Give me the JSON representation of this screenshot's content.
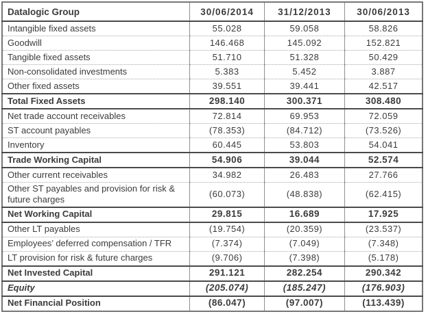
{
  "table": {
    "title": "Datalogic Group",
    "columns": [
      "30/06/2014",
      "31/12/2013",
      "30/06/2013"
    ],
    "rows": [
      {
        "label": "Intangible fixed assets",
        "values": [
          "55.028",
          "59.058",
          "58.826"
        ],
        "style": "normal",
        "divider": "solid"
      },
      {
        "label": "Goodwill",
        "values": [
          "146.468",
          "145.092",
          "152.821"
        ],
        "style": "normal",
        "divider": "dotted"
      },
      {
        "label": "Tangible fixed assets",
        "values": [
          "51.710",
          "51.328",
          "50.429"
        ],
        "style": "normal",
        "divider": "dotted"
      },
      {
        "label": "Non-consolidated investments",
        "values": [
          "5.383",
          "5.452",
          "3.887"
        ],
        "style": "normal",
        "divider": "dotted"
      },
      {
        "label": "Other fixed assets",
        "values": [
          "39.551",
          "39.441",
          "42.517"
        ],
        "style": "normal",
        "divider": "dotted"
      },
      {
        "label": "Total Fixed Assets",
        "values": [
          "298.140",
          "300.371",
          "308.480"
        ],
        "style": "total",
        "divider": "solid"
      },
      {
        "label": "Net trade account receivables",
        "values": [
          "72.814",
          "69.953",
          "72.059"
        ],
        "style": "normal",
        "divider": "solid"
      },
      {
        "label": "ST account payables",
        "values": [
          "(78.353)",
          "(84.712)",
          "(73.526)"
        ],
        "style": "normal",
        "divider": "dotted"
      },
      {
        "label": "Inventory",
        "values": [
          "60.445",
          "53.803",
          "54.041"
        ],
        "style": "normal",
        "divider": "dotted"
      },
      {
        "label": "Trade Working Capital",
        "values": [
          "54.906",
          "39.044",
          "52.574"
        ],
        "style": "total",
        "divider": "solid"
      },
      {
        "label": "Other current receivables",
        "values": [
          "34.982",
          "26.483",
          "27.766"
        ],
        "style": "normal",
        "divider": "solid"
      },
      {
        "label": "Other ST payables and provision for risk & future charges",
        "values": [
          "(60.073)",
          "(48.838)",
          "(62.415)"
        ],
        "style": "normal",
        "divider": "dotted"
      },
      {
        "label": "Net Working Capital",
        "values": [
          "29.815",
          "16.689",
          "17.925"
        ],
        "style": "total",
        "divider": "solid"
      },
      {
        "label": "Other LT payables",
        "values": [
          "(19.754)",
          "(20.359)",
          "(23.537)"
        ],
        "style": "normal",
        "divider": "solid"
      },
      {
        "label": "Employees’ deferred compensation / TFR",
        "values": [
          "(7.374)",
          "(7.049)",
          "(7.348)"
        ],
        "style": "normal",
        "divider": "dotted"
      },
      {
        "label": "LT provision for risk & future charges",
        "values": [
          "(9.706)",
          "(7.398)",
          "(5.178)"
        ],
        "style": "normal",
        "divider": "dotted"
      },
      {
        "label": "Net Invested Capital",
        "values": [
          "291.121",
          "282.254",
          "290.342"
        ],
        "style": "total",
        "divider": "solid"
      },
      {
        "label": "Equity",
        "values": [
          "(205.074)",
          "(185.247)",
          "(176.903)"
        ],
        "style": "equity",
        "divider": "solid"
      },
      {
        "label": "Net Financial Position",
        "values": [
          "(86.047)",
          "(97.007)",
          "(113.439)"
        ],
        "style": "total",
        "divider": "solid"
      }
    ]
  }
}
